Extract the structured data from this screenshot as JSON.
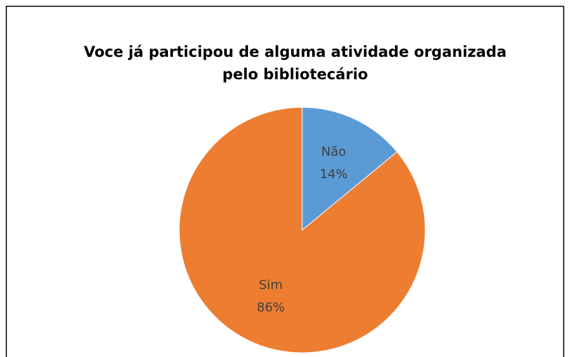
{
  "chart_data": {
    "type": "pie",
    "title": [
      "Voce já participou de alguma atividade organizada",
      "pelo bibliotecário"
    ],
    "categories": [
      "Não",
      "Sim"
    ],
    "values": [
      14,
      86
    ],
    "value_labels": [
      "14%",
      "86%"
    ],
    "colors": [
      "#5b9bd5",
      "#ed7d31"
    ]
  }
}
